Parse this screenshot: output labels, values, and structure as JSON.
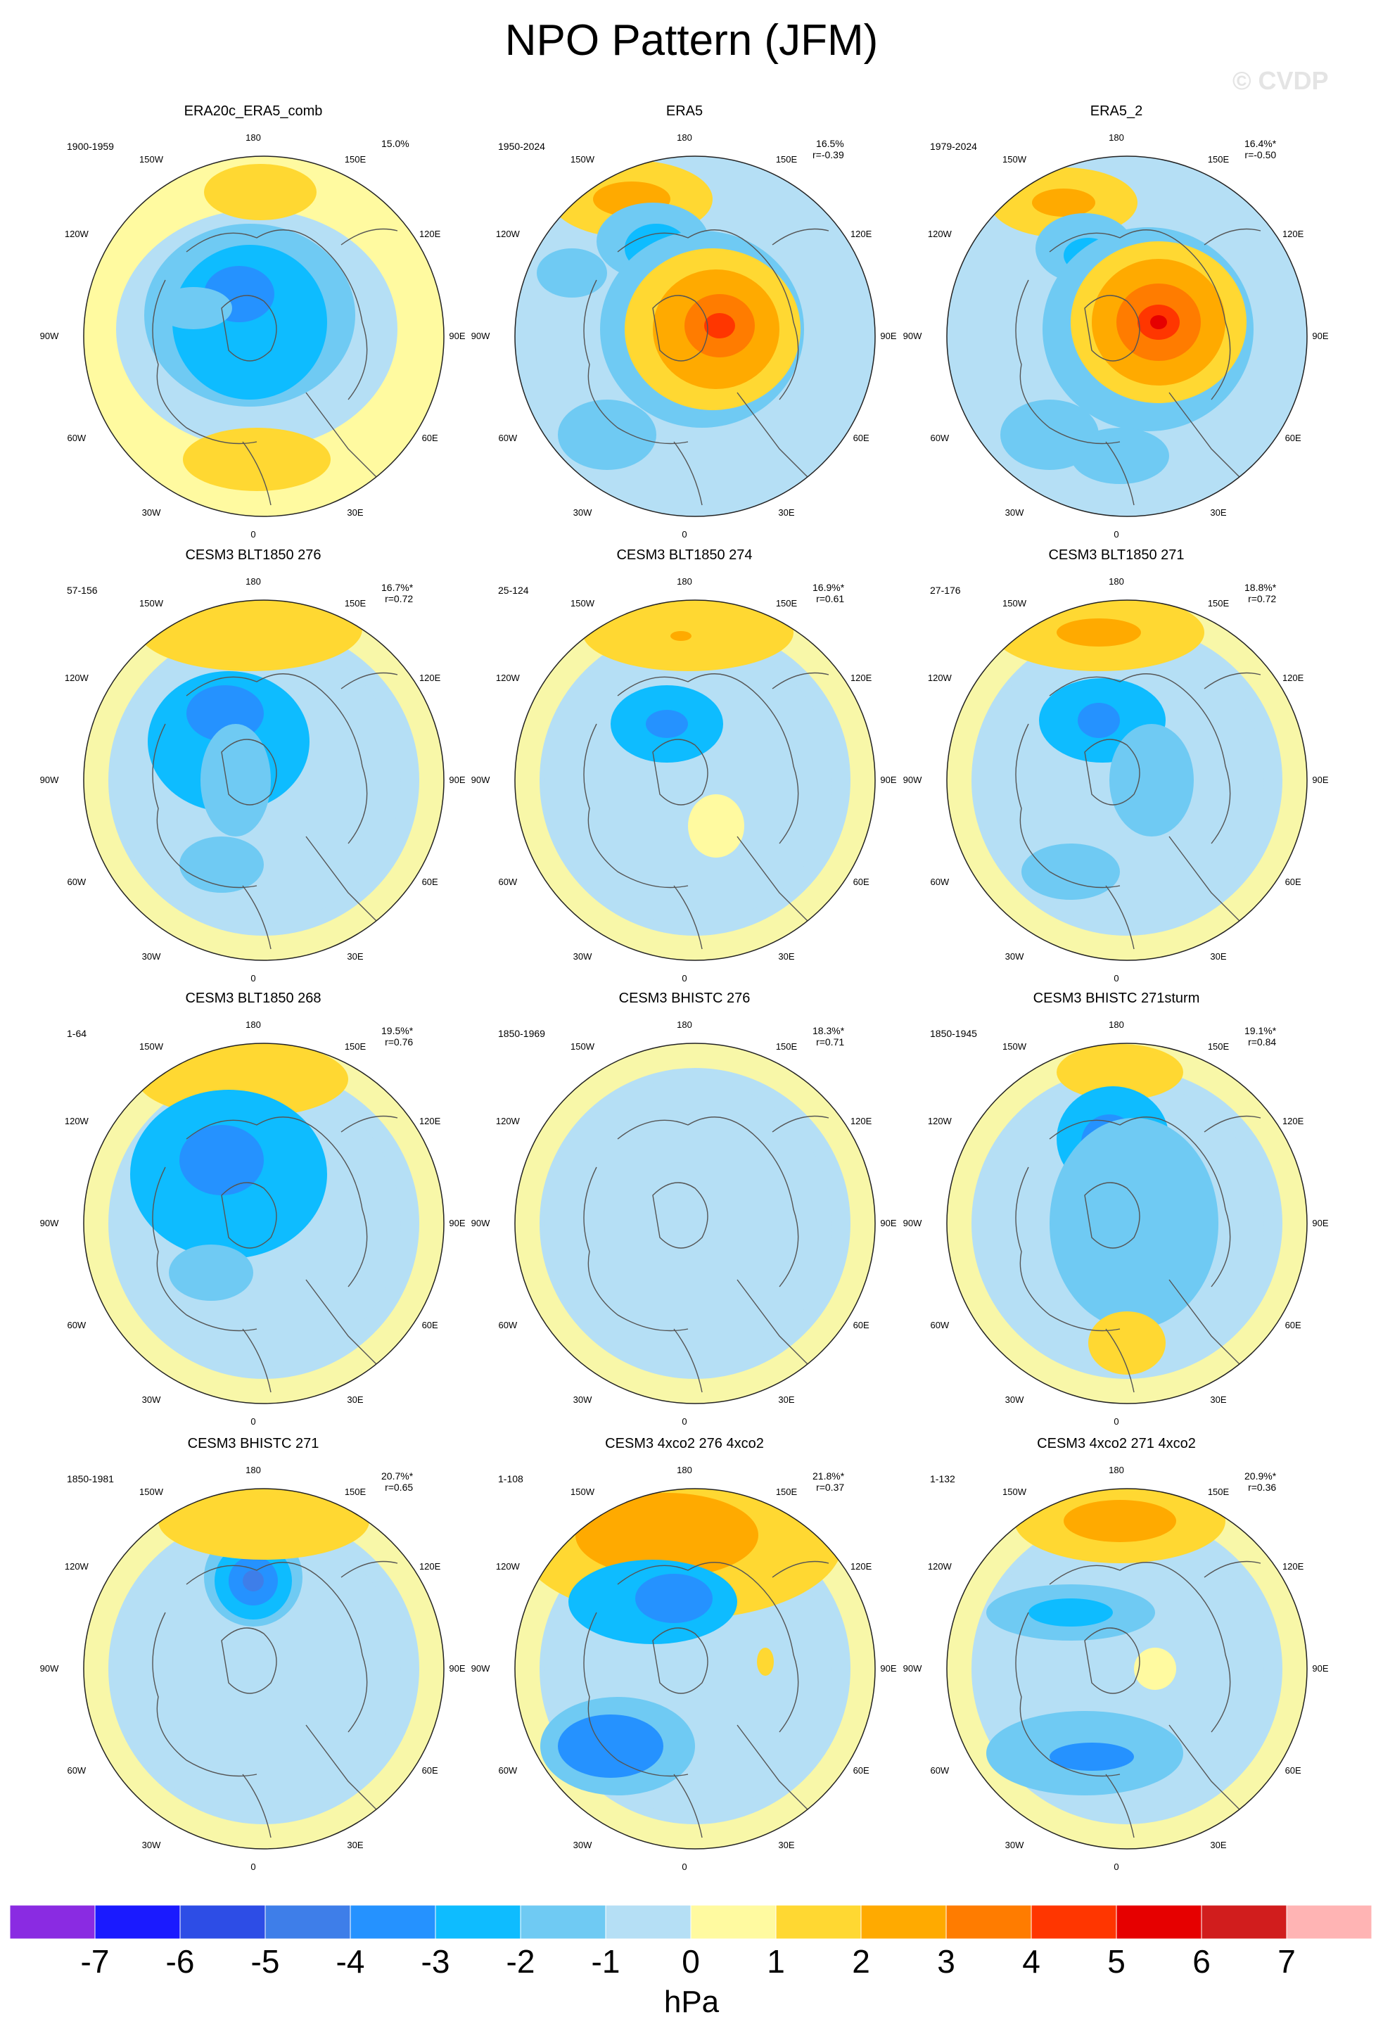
{
  "title": "NPO Pattern (JFM)",
  "watermark": "© CVDP",
  "longitude_labels": [
    "180",
    "150E",
    "120E",
    "90E",
    "60E",
    "30E",
    "0",
    "30W",
    "60W",
    "90W",
    "120W",
    "150W"
  ],
  "units": "hPa",
  "colorbar": {
    "colors": [
      "#8a2be2",
      "#1a1aff",
      "#2d4de6",
      "#3e7ee9",
      "#2592ff",
      "#0ebcff",
      "#6fcaf3",
      "#b5dff5",
      "#fffaa0",
      "#ffd832",
      "#ffaa00",
      "#ff7c00",
      "#ff3600",
      "#e60000",
      "#d11d1d",
      "#ffb4b4"
    ],
    "ticks": [
      "-7",
      "-6",
      "-5",
      "-4",
      "-3",
      "-2",
      "-1",
      "0",
      "1",
      "2",
      "3",
      "4",
      "5",
      "6",
      "7"
    ]
  },
  "panels": [
    {
      "name": "ERA20c_ERA5_comb",
      "period": "1900-1959",
      "pct": "15.0%",
      "r": ""
    },
    {
      "name": "ERA5",
      "period": "1950-2024",
      "pct": "16.5%",
      "r": "r=-0.39"
    },
    {
      "name": "ERA5_2",
      "period": "1979-2024",
      "pct": "16.4%*",
      "r": "r=-0.50"
    },
    {
      "name": "CESM3 BLT1850 276",
      "period": "57-156",
      "pct": "16.7%*",
      "r": "r=0.72"
    },
    {
      "name": "CESM3 BLT1850 274",
      "period": "25-124",
      "pct": "16.9%*",
      "r": "r=0.61"
    },
    {
      "name": "CESM3 BLT1850 271",
      "period": "27-176",
      "pct": "18.8%*",
      "r": "r=0.72"
    },
    {
      "name": "CESM3 BLT1850 268",
      "period": "1-64",
      "pct": "19.5%*",
      "r": "r=0.76"
    },
    {
      "name": "CESM3 BHISTC 276",
      "period": "1850-1969",
      "pct": "18.3%*",
      "r": "r=0.71"
    },
    {
      "name": "CESM3 BHISTC 271sturm",
      "period": "1850-1945",
      "pct": "19.1%*",
      "r": "r=0.84"
    },
    {
      "name": "CESM3 BHISTC 271",
      "period": "1850-1981",
      "pct": "20.7%*",
      "r": "r=0.65"
    },
    {
      "name": "CESM3 4xco2 276 4xco2",
      "period": "1-108",
      "pct": "21.8%*",
      "r": "r=0.37"
    },
    {
      "name": "CESM3 4xco2 271 4xco2",
      "period": "1-132",
      "pct": "20.9%*",
      "r": "r=0.36"
    }
  ]
}
